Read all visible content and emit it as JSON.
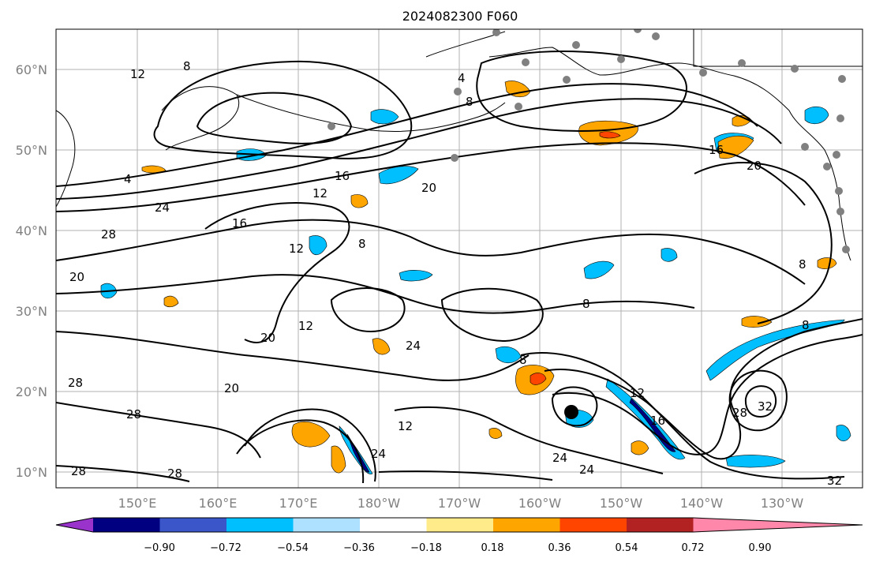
{
  "title": "2024082300 F060",
  "lat_labels": [
    "60°N",
    "50°N",
    "40°N",
    "30°N",
    "20°N",
    "10°N"
  ],
  "lon_labels": [
    "150°E",
    "160°E",
    "170°E",
    "180°W",
    "170°W",
    "160°W",
    "150°W",
    "140°W",
    "130°W"
  ],
  "colorbar": {
    "tick_labels": [
      "−0.90",
      "−0.72",
      "−0.54",
      "−0.36",
      "−0.18",
      "0.18",
      "0.36",
      "0.54",
      "0.72",
      "0.90"
    ],
    "colors": [
      "#9933cc",
      "#000080",
      "#3a56c8",
      "#00bfff",
      "#aee0ff",
      "#ffffff",
      "#ffeb8a",
      "#ffa500",
      "#ff4500",
      "#b22222",
      "#ff88aa"
    ]
  },
  "contour_labels": [
    "12",
    "8",
    "4",
    "8",
    "4",
    "24",
    "28",
    "20",
    "16",
    "12",
    "16",
    "20",
    "16",
    "20",
    "12",
    "8",
    "20",
    "12",
    "24",
    "8",
    "8",
    "28",
    "28",
    "20",
    "24",
    "12",
    "28",
    "28",
    "12",
    "16",
    "28",
    "32",
    "8",
    "8",
    "24",
    "24",
    "32"
  ],
  "colors": {
    "land": "#808080",
    "grid": "#b0b0b0",
    "contour": "#000000"
  }
}
